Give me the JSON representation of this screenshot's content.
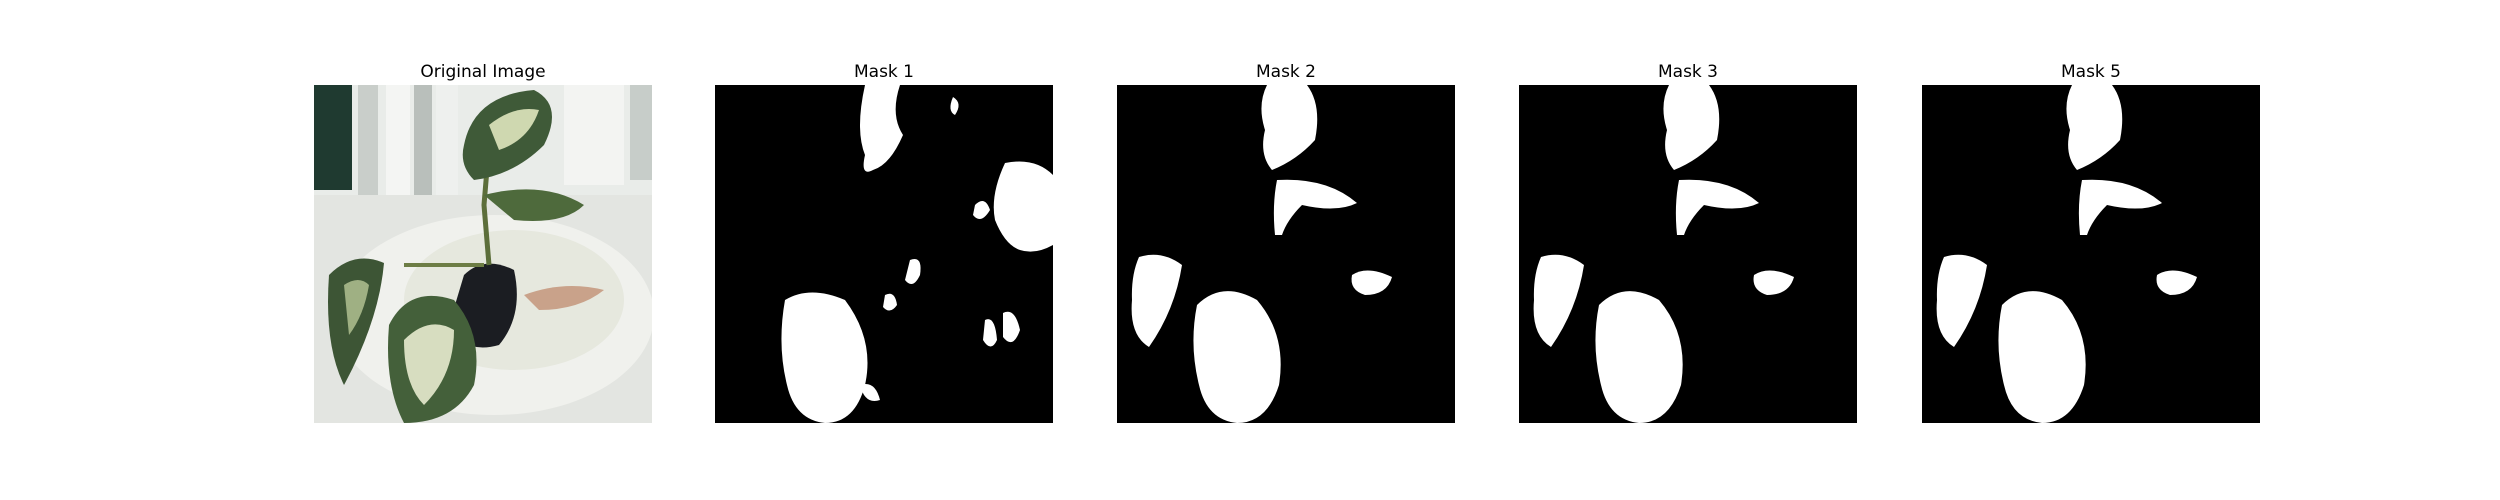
{
  "figure": {
    "panels": [
      {
        "title": "Original Image",
        "kind": "photo"
      },
      {
        "title": "Mask 1",
        "kind": "mask",
        "variant": "mask1"
      },
      {
        "title": "Mask 2",
        "kind": "mask",
        "variant": "mask-common"
      },
      {
        "title": "Mask 3",
        "kind": "mask",
        "variant": "mask-common"
      },
      {
        "title": "Mask 5",
        "kind": "mask",
        "variant": "mask-common"
      }
    ],
    "colors": {
      "mask_background": "#000000",
      "mask_foreground": "#ffffff",
      "photo_background": "#d9dcd6",
      "leaf_dark": "#3f5a38",
      "leaf_light": "#cfd8b0",
      "pot": "#1b1d22",
      "window_dark": "#1f3a30",
      "window_light": "#eef1ee"
    }
  }
}
